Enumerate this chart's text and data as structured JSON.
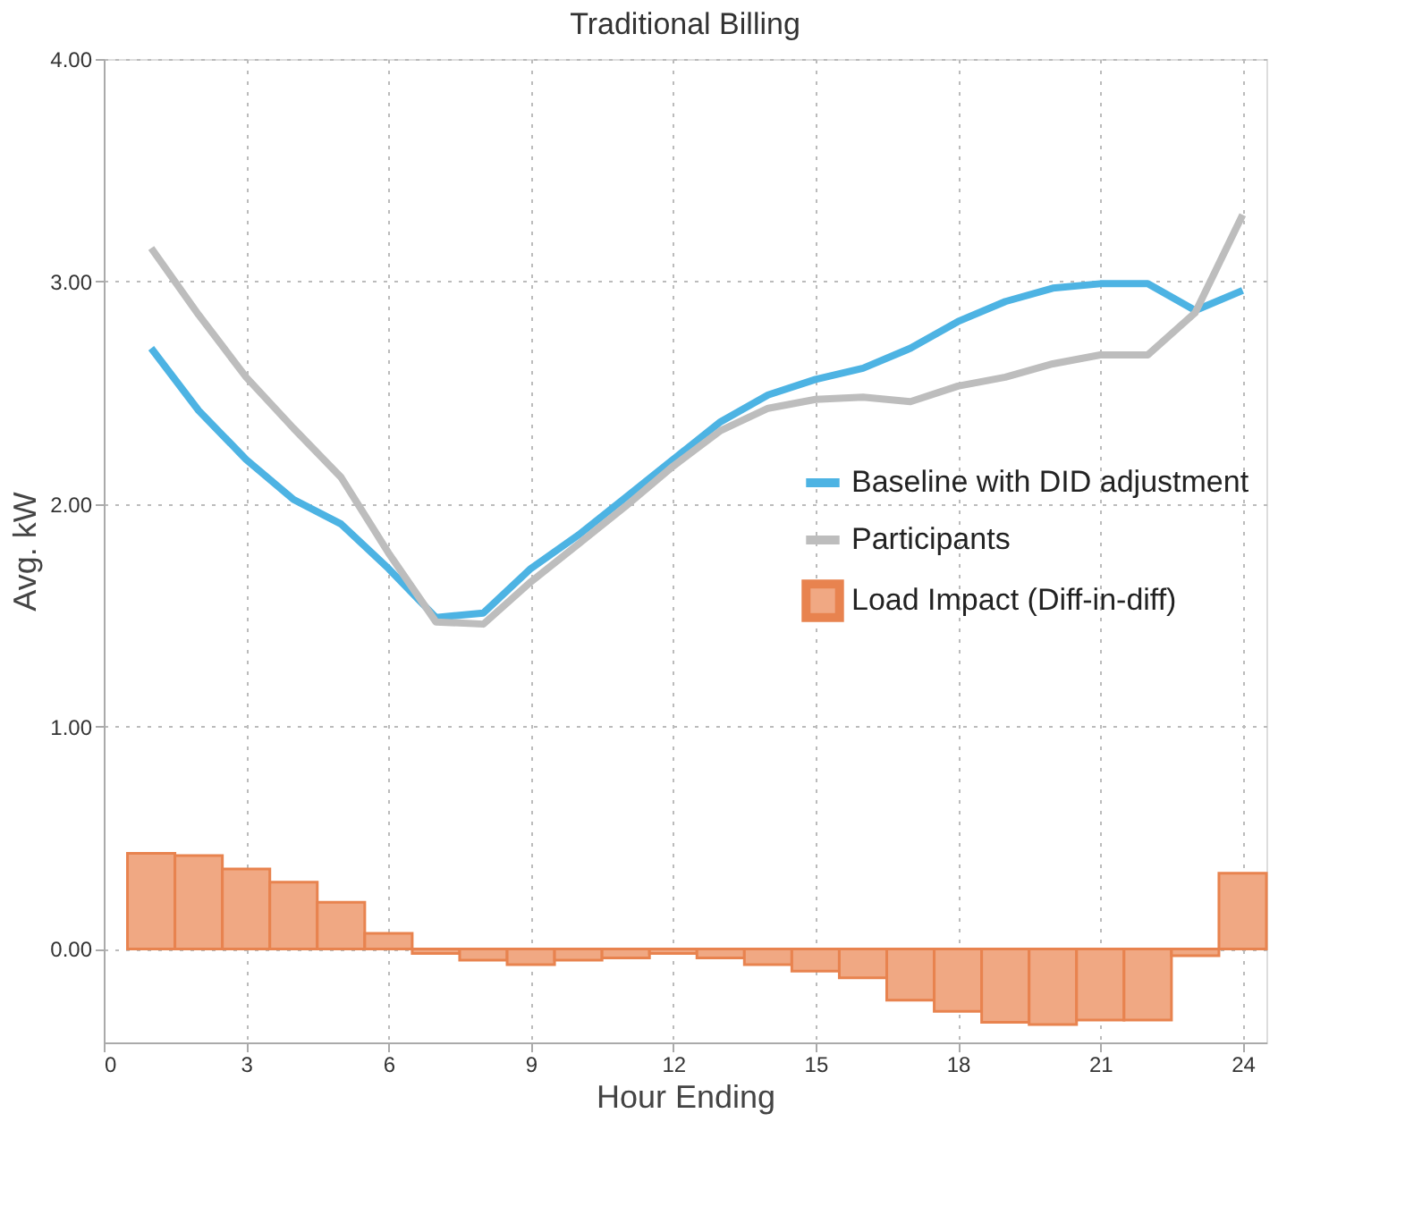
{
  "chart_data": {
    "type": "line",
    "title": "Traditional Billing",
    "xlabel": "Hour Ending",
    "ylabel": "Avg. kW",
    "x": [
      1,
      2,
      3,
      4,
      5,
      6,
      7,
      8,
      9,
      10,
      11,
      12,
      13,
      14,
      15,
      16,
      17,
      18,
      19,
      20,
      21,
      22,
      23,
      24
    ],
    "series": [
      {
        "name": "Baseline with DID adjustment",
        "color": "#4db3e3",
        "values": [
          2.7,
          2.42,
          2.2,
          2.02,
          1.91,
          1.71,
          1.49,
          1.51,
          1.71,
          1.86,
          2.03,
          2.2,
          2.37,
          2.49,
          2.56,
          2.61,
          2.7,
          2.82,
          2.91,
          2.97,
          2.99,
          2.99,
          2.87,
          2.96
        ]
      },
      {
        "name": "Participants",
        "color": "#bdbdbd",
        "values": [
          3.15,
          2.85,
          2.57,
          2.34,
          2.12,
          1.78,
          1.47,
          1.46,
          1.65,
          1.82,
          1.99,
          2.17,
          2.33,
          2.43,
          2.47,
          2.48,
          2.46,
          2.53,
          2.57,
          2.63,
          2.67,
          2.67,
          2.86,
          3.3
        ]
      },
      {
        "name": "Load Impact (Diff-in-diff)",
        "type": "bar",
        "color": "#f0a883",
        "values": [
          0.43,
          0.42,
          0.36,
          0.3,
          0.21,
          0.07,
          -0.02,
          -0.05,
          -0.07,
          -0.05,
          -0.04,
          -0.02,
          -0.04,
          -0.07,
          -0.1,
          -0.13,
          -0.23,
          -0.28,
          -0.33,
          -0.34,
          -0.32,
          -0.32,
          -0.03,
          0.34
        ]
      }
    ],
    "xlim": [
      0,
      24.5
    ],
    "xticks": [
      0,
      3,
      6,
      9,
      12,
      15,
      18,
      21,
      24
    ],
    "ylim": [
      -0.42,
      4.0
    ],
    "yticks": [
      {
        "value": 0,
        "label": "0.00"
      },
      {
        "value": 1,
        "label": "1.00"
      },
      {
        "value": 2,
        "label": "2.00"
      },
      {
        "value": 3,
        "label": "3.00"
      },
      {
        "value": 4,
        "label": "4.00"
      }
    ],
    "grid": true,
    "legend": "right",
    "line_style": "solid",
    "marker": "none"
  }
}
